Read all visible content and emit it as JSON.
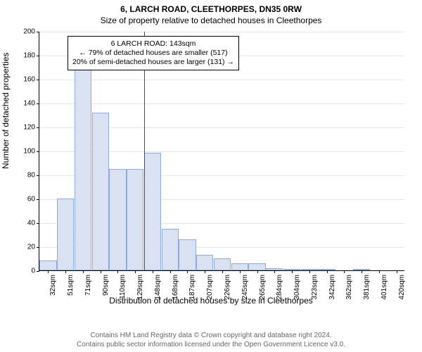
{
  "title_line1": "6, LARCH ROAD, CLEETHORPES, DN35 0RW",
  "title_line2": "Size of property relative to detached houses in Cleethorpes",
  "ylabel": "Number of detached properties",
  "xlabel": "Distribution of detached houses by size in Cleethorpes",
  "footer_line1": "Contains HM Land Registry data © Crown copyright and database right 2024.",
  "footer_line2": "Contains public sector information licensed under the Open Government Licence v3.0.",
  "chart": {
    "type": "histogram",
    "ylim": [
      0,
      200
    ],
    "ytick_step": 20,
    "yticks": [
      0,
      20,
      40,
      60,
      80,
      100,
      120,
      140,
      160,
      180,
      200
    ],
    "grid_color": "#e6e6e6",
    "bar_fill": "#d9e1f2",
    "bar_stroke": "#8faadc",
    "background_color": "#ffffff",
    "reference_line_color": "#ff0000",
    "reference_value_index": 6,
    "font_size_axis": 10,
    "font_size_label": 12,
    "categories": [
      "32sqm",
      "51sqm",
      "71sqm",
      "90sqm",
      "110sqm",
      "129sqm",
      "148sqm",
      "168sqm",
      "187sqm",
      "207sqm",
      "226sqm",
      "245sqm",
      "265sqm",
      "284sqm",
      "304sqm",
      "323sqm",
      "342sqm",
      "362sqm",
      "381sqm",
      "401sqm",
      "420sqm"
    ],
    "values": [
      8,
      60,
      180,
      132,
      85,
      85,
      98,
      35,
      26,
      13,
      10,
      6,
      6,
      2,
      1,
      1,
      1,
      0,
      1,
      0,
      0
    ],
    "annotation": {
      "line1": "6 LARCH ROAD: 143sqm",
      "line2": "← 79% of detached houses are smaller (517)",
      "line3": "20% of semi-detached houses are larger (131) →"
    }
  }
}
